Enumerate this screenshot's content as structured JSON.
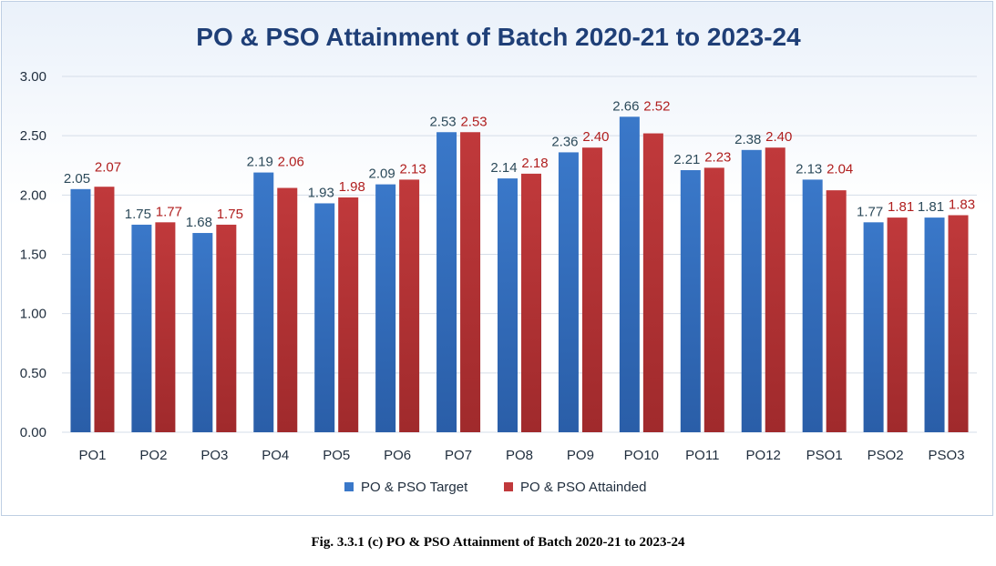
{
  "caption": "Fig. 3.3.1 (c) PO & PSO Attainment of Batch 2020-21 to 2023-24",
  "colors": {
    "title": "#1f3f77",
    "target_bar": "#3a78c9",
    "attained_bar": "#c0393b",
    "target_label": "#2c4a5a",
    "attained_label": "#b01e1e",
    "gridline": "#d5dde8"
  },
  "chart_data": {
    "type": "bar",
    "title": "PO & PSO Attainment of Batch 2020-21 to 2023-24",
    "categories": [
      "PO1",
      "PO2",
      "PO3",
      "PO4",
      "PO5",
      "PO6",
      "PO7",
      "PO8",
      "PO9",
      "PO10",
      "PO11",
      "PO12",
      "PSO1",
      "PSO2",
      "PSO3"
    ],
    "series": [
      {
        "name": "PO & PSO Target",
        "values": [
          2.05,
          1.75,
          1.68,
          2.19,
          1.93,
          2.09,
          2.53,
          2.14,
          2.36,
          2.66,
          2.21,
          2.38,
          2.13,
          1.77,
          1.81
        ],
        "labels": [
          "2.05",
          "1.75",
          "1.68",
          "2.19",
          "1.93",
          "2.09",
          "2.53",
          "2.14",
          "2.36",
          "2.66",
          "2.21",
          "2.38",
          "2.13",
          "1.77",
          "1.81"
        ]
      },
      {
        "name": "PO & PSO Attainded",
        "values": [
          2.07,
          1.77,
          1.75,
          2.06,
          1.98,
          2.13,
          2.53,
          2.18,
          2.4,
          2.52,
          2.23,
          2.4,
          2.04,
          1.81,
          1.83
        ],
        "labels": [
          "2.07",
          "1.77",
          "1.75",
          "2.06",
          "1.98",
          "2.13",
          "2.53",
          "2.18",
          "2.40",
          "2.52",
          "2.23",
          "2.40",
          "2.04",
          "1.81",
          "1.83"
        ]
      }
    ],
    "ylim": [
      0,
      3
    ],
    "yticks": [
      "0.00",
      "0.50",
      "1.00",
      "1.50",
      "2.00",
      "2.50",
      "3.00"
    ],
    "grid": true,
    "legend": "bottom-center"
  }
}
